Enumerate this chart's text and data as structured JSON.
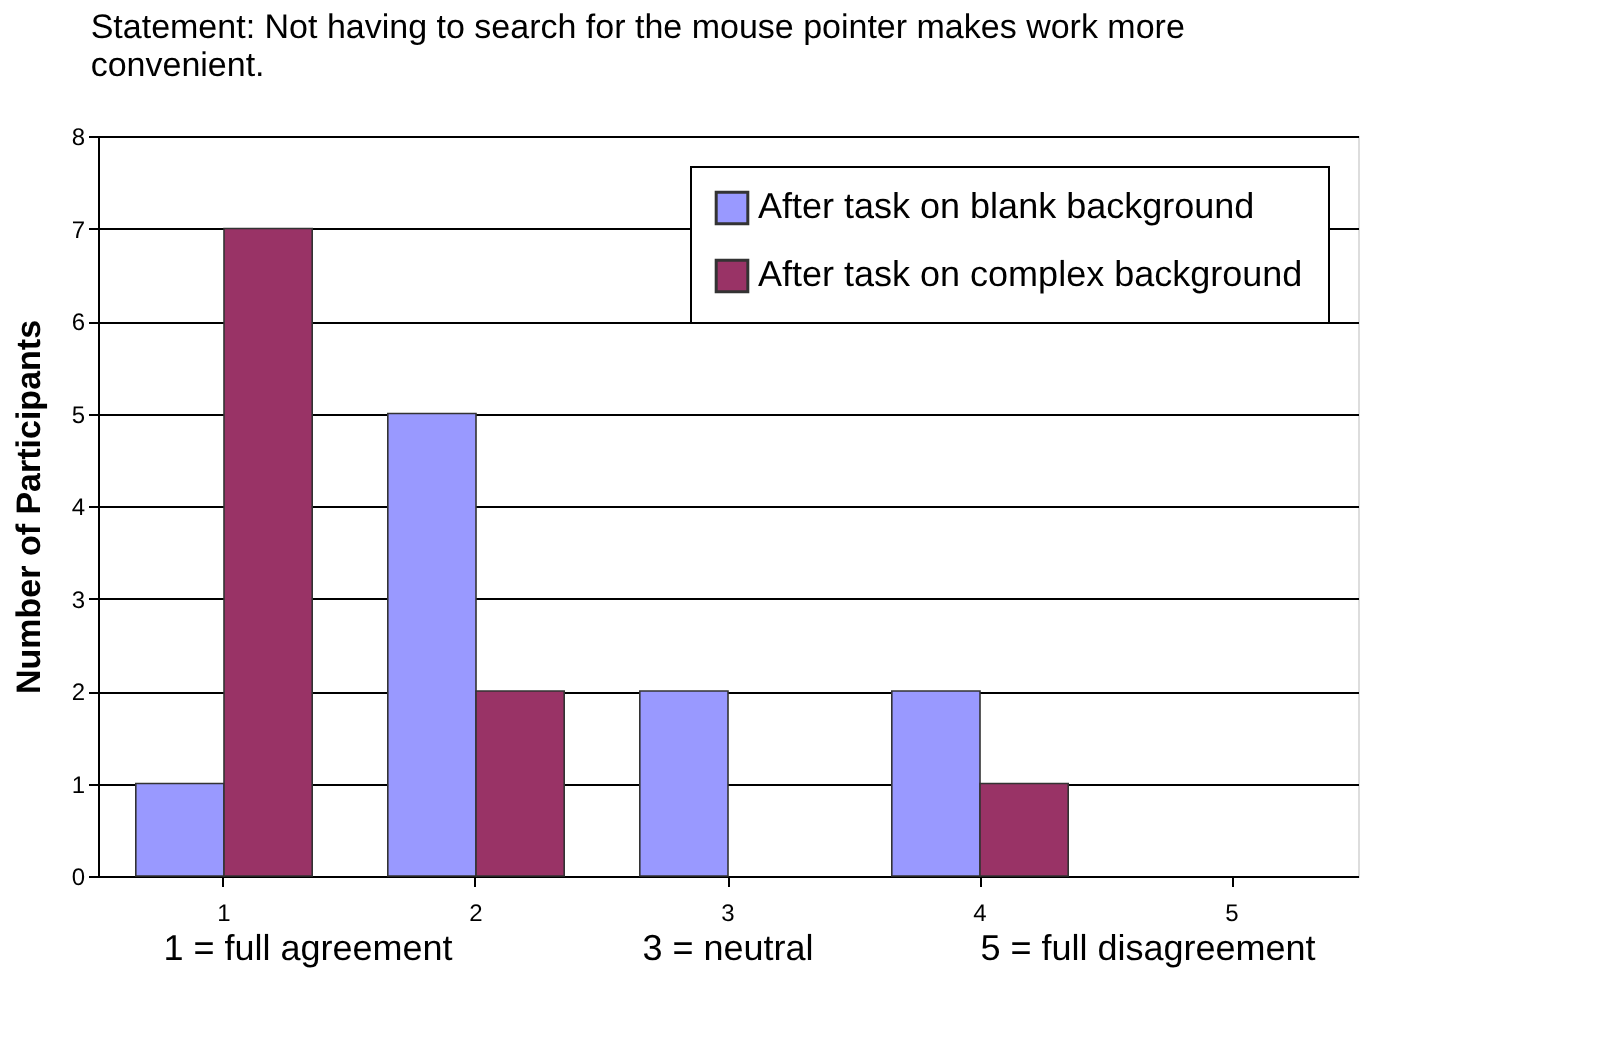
{
  "chart_data": {
    "type": "bar",
    "title": "Statement: Not having to search for the mouse pointer makes work more convenient.",
    "ylabel": "Number of Participants",
    "categories": [
      "1",
      "2",
      "3",
      "4",
      "5"
    ],
    "series": [
      {
        "name": "After task on blank background",
        "color": "#9999ff",
        "values": [
          1,
          5,
          2,
          2,
          0
        ]
      },
      {
        "name": "After task on complex background",
        "color": "#993366",
        "values": [
          7,
          2,
          0,
          1,
          0
        ]
      }
    ],
    "ylim": [
      0,
      8
    ],
    "yticks": [
      0,
      1,
      2,
      3,
      4,
      5,
      6,
      7,
      8
    ],
    "grid": "y",
    "legend": "top right",
    "annotations": [
      "1 = full agreement",
      "3 = neutral",
      "5 = full disagreement"
    ]
  }
}
